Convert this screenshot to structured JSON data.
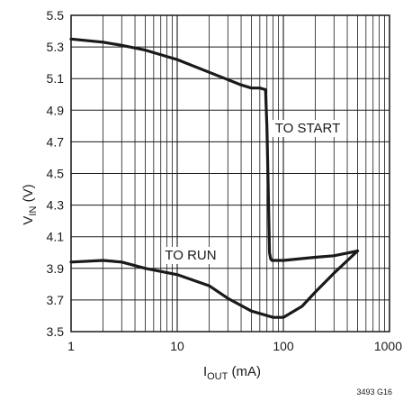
{
  "chart_data": {
    "type": "line",
    "title": "",
    "xlabel": {
      "main": "I",
      "sub": "OUT",
      "unit": " (mA)"
    },
    "ylabel": {
      "main": "V",
      "sub": "IN",
      "unit": " (V)"
    },
    "xscale": "log",
    "xlim": [
      1,
      1000
    ],
    "ylim": [
      3.5,
      5.5
    ],
    "grid": true,
    "x_ticks": [
      1,
      10,
      100,
      1000
    ],
    "x_tick_labels": [
      "1",
      "10",
      "100",
      "1000"
    ],
    "y_ticks": [
      3.5,
      3.7,
      3.9,
      4.1,
      4.3,
      4.5,
      4.7,
      4.9,
      5.1,
      5.3,
      5.5
    ],
    "y_tick_labels": [
      "3.5",
      "3.7",
      "3.9",
      "4.1",
      "4.3",
      "4.5",
      "4.7",
      "4.9",
      "5.1",
      "5.3",
      "5.5"
    ],
    "series": [
      {
        "name": "TO START",
        "x": [
          1,
          2,
          3,
          5,
          10,
          20,
          40,
          50,
          60,
          68,
          70,
          72,
          74,
          76,
          78,
          80,
          100,
          200,
          300,
          500
        ],
        "y": [
          5.35,
          5.33,
          5.31,
          5.28,
          5.22,
          5.14,
          5.06,
          5.04,
          5.04,
          5.03,
          4.8,
          4.4,
          4.0,
          3.96,
          3.95,
          3.95,
          3.95,
          3.97,
          3.98,
          4.01
        ]
      },
      {
        "name": "TO RUN",
        "x": [
          1,
          2,
          3,
          5,
          10,
          20,
          30,
          50,
          80,
          100,
          150,
          200,
          300,
          500
        ],
        "y": [
          3.94,
          3.95,
          3.94,
          3.9,
          3.86,
          3.79,
          3.71,
          3.63,
          3.59,
          3.59,
          3.66,
          3.75,
          3.87,
          4.01
        ]
      }
    ],
    "annotations": [
      "TO START",
      "TO RUN"
    ]
  },
  "figure_id": "3493 G16"
}
